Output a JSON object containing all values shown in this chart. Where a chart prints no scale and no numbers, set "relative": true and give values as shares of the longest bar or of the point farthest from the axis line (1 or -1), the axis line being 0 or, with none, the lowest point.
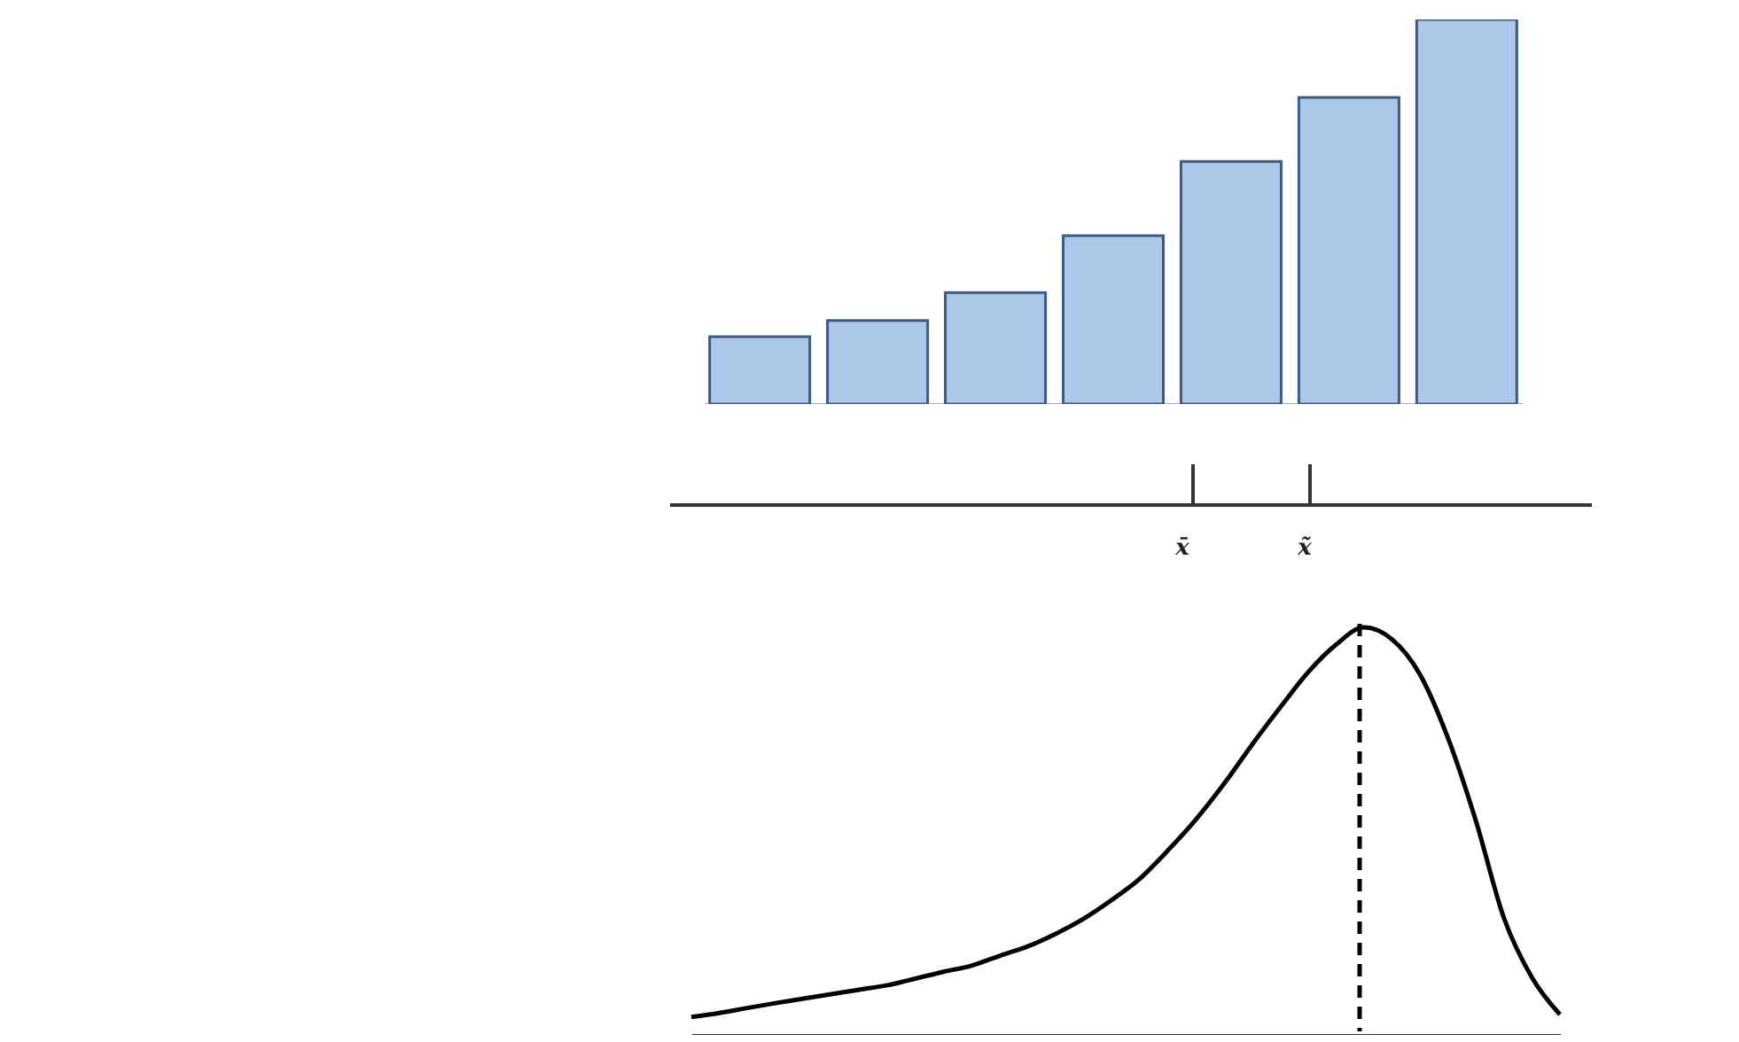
{
  "chart_data": [
    {
      "type": "bar",
      "relative": true,
      "categories": [
        null,
        null,
        null,
        null,
        null,
        null,
        null
      ],
      "values": [
        0.175,
        0.217,
        0.29,
        0.438,
        0.631,
        0.797,
        1
      ],
      "color": "#abc8e8"
    },
    {
      "type": "line",
      "relative": true,
      "categories": [
        null,
        null,
        null,
        null,
        null,
        null,
        null,
        null,
        null,
        null,
        null,
        null,
        null,
        null,
        null,
        null,
        null,
        null,
        null,
        null,
        null,
        null,
        null,
        null,
        null,
        null,
        null,
        null,
        null,
        null,
        null,
        null
      ],
      "line_style": "solid",
      "series": [
        {
          "color": "#000000",
          "values": [
            0.044,
            0.054,
            0.066,
            0.078,
            0.089,
            0.1,
            0.111,
            0.122,
            0.138,
            0.155,
            0.17,
            0.194,
            0.217,
            0.248,
            0.285,
            0.331,
            0.383,
            0.452,
            0.528,
            0.615,
            0.711,
            0.802,
            0.889,
            0.957,
            1,
            0.971,
            0.885,
            0.729,
            0.525,
            0.287,
            0.141,
            0.05
          ]
        }
      ],
      "annotations": [
        "x̄",
        "x̃"
      ]
    }
  ]
}
